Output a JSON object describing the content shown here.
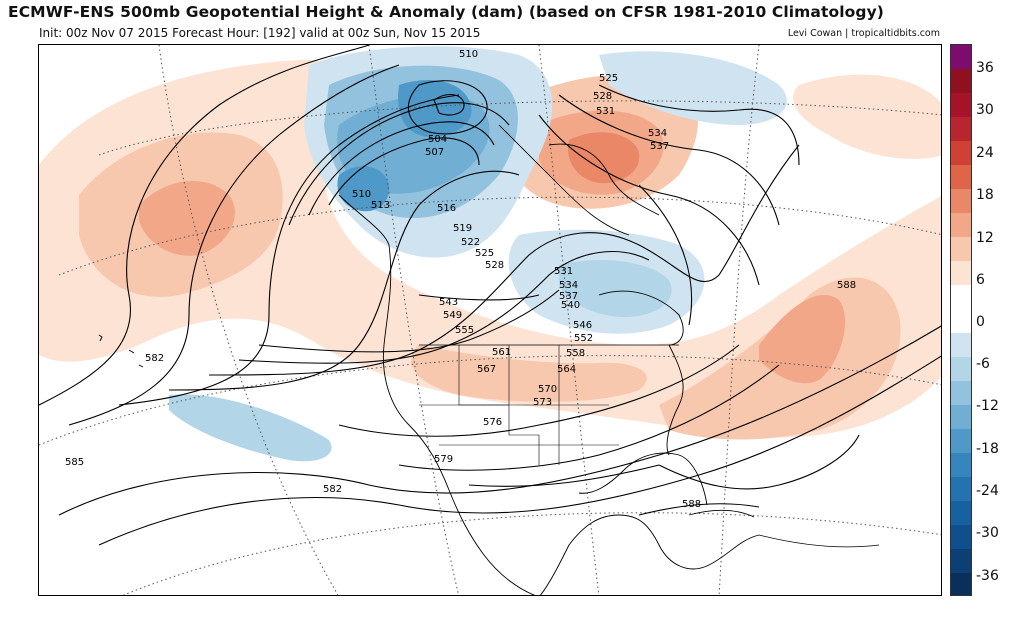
{
  "header": {
    "title": "ECMWF-ENS 500mb Geopotential Height & Anomaly (dam) (based on CFSR 1981-2010 Climatology)",
    "subtitle": "Init: 00z Nov 07 2015   Forecast Hour: [192]   valid at 00z Sun, Nov 15 2015",
    "credit": "Levi Cowan | tropicaltidbits.com"
  },
  "colorbar": {
    "labels": [
      "36",
      "30",
      "24",
      "18",
      "12",
      "6",
      "0",
      "-6",
      "-12",
      "-18",
      "-24",
      "-30",
      "-36"
    ],
    "colors": [
      "#7e0b6e",
      "#8f1020",
      "#a5132a",
      "#b9252e",
      "#cf4134",
      "#df6549",
      "#ea8766",
      "#f2a888",
      "#f8c8ae",
      "#fde3d3",
      "#ffffff",
      "#ffffff",
      "#cfe4f0",
      "#b3d5e8",
      "#92c2de",
      "#70aed4",
      "#4f99c8",
      "#3686bd",
      "#2373b0",
      "#17619f",
      "#0f4f8b",
      "#0c3f73",
      "#0a2f5b"
    ]
  },
  "contour_labels": {
    "510a": "510",
    "525": "525",
    "528": "528",
    "531a": "531",
    "534a": "534",
    "537a": "537",
    "504": "504",
    "507": "507",
    "510b": "510",
    "513": "513",
    "516": "516",
    "519": "519",
    "522": "522",
    "525b": "525",
    "528b": "528",
    "531b": "531",
    "534b": "534",
    "537b": "537",
    "540": "540",
    "543": "543",
    "546": "546",
    "549": "549",
    "552": "552",
    "555": "555",
    "558": "558",
    "561": "561",
    "564": "564",
    "567": "567",
    "570": "570",
    "573": "573",
    "576": "576",
    "579": "579",
    "582a": "582",
    "582b": "582",
    "585": "585",
    "588a": "588",
    "588b": "588"
  }
}
